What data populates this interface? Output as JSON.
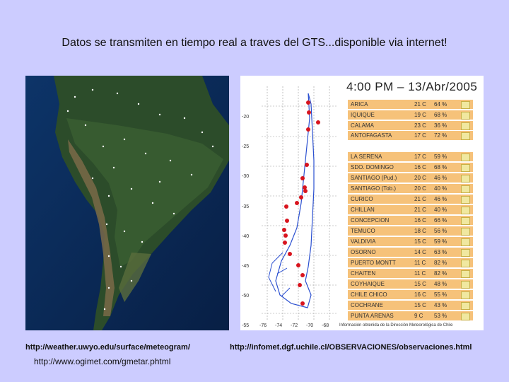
{
  "title": "Datos se transmiten en tiempo real a traves del GTS...disponible via internet!",
  "links": {
    "uwyo": "http://weather.uwyo.edu/surface/meteogram/",
    "ogimet": "http://www.ogimet.com/gmetar.phtml",
    "infomet": "http://infomet.dgf.uchile.cl/OBSERVACIONES/observaciones.html"
  },
  "meteo": {
    "header": "4:00 PM  –  13/Abr/2005",
    "footer": "Información obtenida de la Dirección Meteorológica de Chile",
    "lat_labels": [
      "-20",
      "-25",
      "-30",
      "-35",
      "-40",
      "-45",
      "-50",
      "-55"
    ],
    "lon_labels": [
      "-76",
      "-74",
      "-72",
      "-70",
      "-68"
    ],
    "stations": [
      {
        "name": "ARICA",
        "temp": "21 C",
        "hum": "64 %"
      },
      {
        "name": "IQUIQUE",
        "temp": "19 C",
        "hum": "68 %"
      },
      {
        "name": "CALAMA",
        "temp": "23 C",
        "hum": "36 %"
      },
      {
        "name": "ANTOFAGASTA",
        "temp": "17 C",
        "hum": "72 %"
      },
      {
        "name": "LA SERENA",
        "temp": "17 C",
        "hum": "59 %"
      },
      {
        "name": "SDO. DOMINGO",
        "temp": "16 C",
        "hum": "68 %"
      },
      {
        "name": "SANTIAGO (Pud.)",
        "temp": "20 C",
        "hum": "46 %"
      },
      {
        "name": "SANTIAGO (Tob.)",
        "temp": "20 C",
        "hum": "40 %"
      },
      {
        "name": "CURICO",
        "temp": "21 C",
        "hum": "46 %"
      },
      {
        "name": "CHILLAN",
        "temp": "21 C",
        "hum": "40 %"
      },
      {
        "name": "CONCEPCION",
        "temp": "16 C",
        "hum": "66 %"
      },
      {
        "name": "TEMUCO",
        "temp": "18 C",
        "hum": "56 %"
      },
      {
        "name": "VALDIVIA",
        "temp": "15 C",
        "hum": "59 %"
      },
      {
        "name": "OSORNO",
        "temp": "14 C",
        "hum": "63 %"
      },
      {
        "name": "PUERTO MONTT",
        "temp": "11 C",
        "hum": "82 %"
      },
      {
        "name": "CHAITEN",
        "temp": "11 C",
        "hum": "82 %"
      },
      {
        "name": "COYHAIQUE",
        "temp": "15 C",
        "hum": "48 %"
      },
      {
        "name": "CHILE CHICO",
        "temp": "16 C",
        "hum": "55 %"
      },
      {
        "name": "COCHRANE",
        "temp": "15 C",
        "hum": "43 %"
      },
      {
        "name": "PUNTA ARENAS",
        "temp": "9 C",
        "hum": "53 %"
      }
    ]
  }
}
